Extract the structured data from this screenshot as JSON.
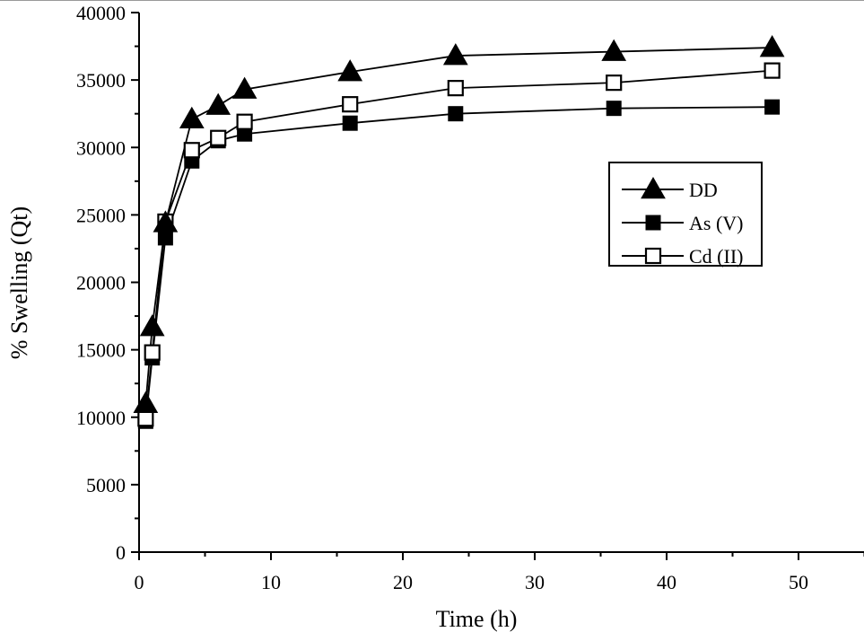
{
  "chart_data": {
    "type": "line",
    "xlabel": "Time (h)",
    "ylabel": "% Swelling (Qt)",
    "xlim": [
      0,
      55
    ],
    "ylim": [
      0,
      40000
    ],
    "x_ticks": [
      "0",
      "10",
      "20",
      "30",
      "40",
      "50"
    ],
    "y_ticks": [
      "0",
      "5000",
      "10000",
      "15000",
      "20000",
      "25000",
      "30000",
      "35000",
      "40000"
    ],
    "legend_position": "right, upper-middle",
    "series": [
      {
        "name": "DD",
        "marker": "filled-triangle",
        "x": [
          0.5,
          1,
          2,
          4,
          6,
          8,
          16,
          24,
          36,
          48
        ],
        "y": [
          11000,
          16700,
          24400,
          32100,
          33100,
          34300,
          35600,
          36800,
          37100,
          37400
        ]
      },
      {
        "name": "As (V)",
        "marker": "filled-square",
        "x": [
          0.5,
          1,
          2,
          4,
          6,
          8,
          16,
          24,
          36,
          48
        ],
        "y": [
          9700,
          14400,
          23300,
          29000,
          30500,
          31000,
          31800,
          32500,
          32900,
          33000
        ]
      },
      {
        "name": "Cd (II)",
        "marker": "open-square",
        "x": [
          0.5,
          1,
          2,
          4,
          6,
          8,
          16,
          24,
          36,
          48
        ],
        "y": [
          9900,
          14800,
          24500,
          29800,
          30700,
          31900,
          33200,
          34400,
          34800,
          35700
        ]
      }
    ]
  }
}
